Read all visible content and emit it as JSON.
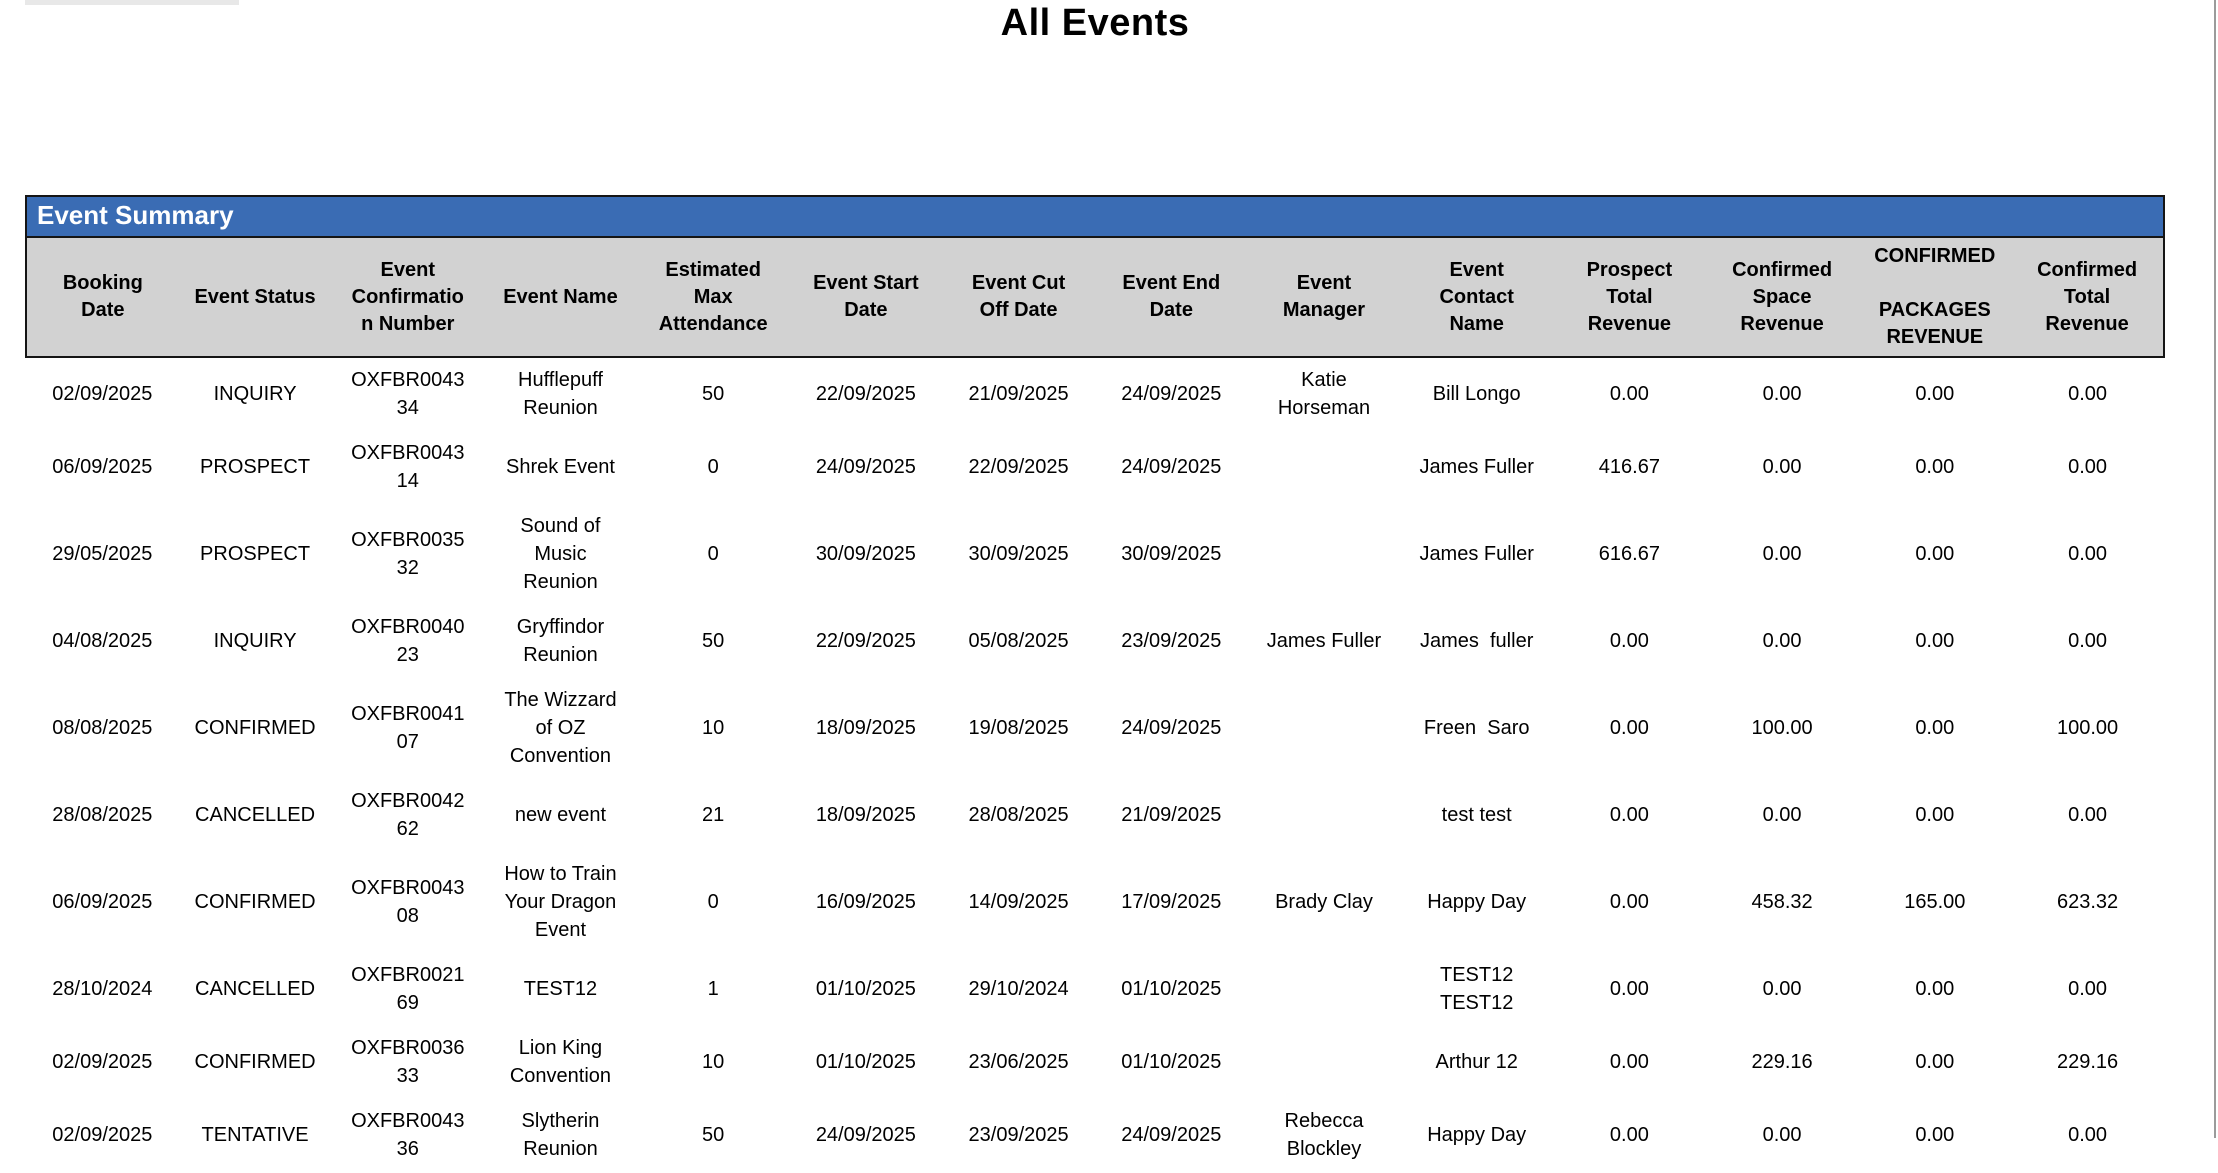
{
  "page": {
    "title": "All Events"
  },
  "colors": {
    "section_bar_blue": "#3a6cb4",
    "header_gray": "#d2d2d2",
    "border_black": "#151515",
    "text_black": "#000000"
  },
  "table": {
    "section_title": "Event Summary",
    "columns": [
      "Booking\nDate",
      "Event Status",
      "Event\nConfirmatio\nn Number",
      "Event Name",
      "Estimated\nMax\nAttendance",
      "Event Start\nDate",
      "Event Cut\nOff Date",
      "Event End\nDate",
      "Event\nManager",
      "Event\nContact\nName",
      "Prospect\nTotal\nRevenue",
      "Confirmed\nSpace\nRevenue",
      "CONFIRMED\n\nPACKAGES\nREVENUE",
      "Confirmed\nTotal\nRevenue"
    ],
    "rows": [
      [
        "02/09/2025",
        "INQUIRY",
        "OXFBR0043\n34",
        "Hufflepuff\nReunion",
        "50",
        "22/09/2025",
        "21/09/2025",
        "24/09/2025",
        "Katie\nHorseman",
        "Bill Longo",
        "0.00",
        "0.00",
        "0.00",
        "0.00"
      ],
      [
        "06/09/2025",
        "PROSPECT",
        "OXFBR0043\n14",
        "Shrek Event",
        "0",
        "24/09/2025",
        "22/09/2025",
        "24/09/2025",
        "",
        "James Fuller",
        "416.67",
        "0.00",
        "0.00",
        "0.00"
      ],
      [
        "29/05/2025",
        "PROSPECT",
        "OXFBR0035\n32",
        "Sound of\nMusic\nReunion",
        "0",
        "30/09/2025",
        "30/09/2025",
        "30/09/2025",
        "",
        "James Fuller",
        "616.67",
        "0.00",
        "0.00",
        "0.00"
      ],
      [
        "04/08/2025",
        "INQUIRY",
        "OXFBR0040\n23",
        "Gryffindor\nReunion",
        "50",
        "22/09/2025",
        "05/08/2025",
        "23/09/2025",
        "James Fuller",
        "James  fuller",
        "0.00",
        "0.00",
        "0.00",
        "0.00"
      ],
      [
        "08/08/2025",
        "CONFIRMED",
        "OXFBR0041\n07",
        "The Wizzard\nof OZ\nConvention",
        "10",
        "18/09/2025",
        "19/08/2025",
        "24/09/2025",
        "",
        "Freen  Saro",
        "0.00",
        "100.00",
        "0.00",
        "100.00"
      ],
      [
        "28/08/2025",
        "CANCELLED",
        "OXFBR0042\n62",
        "new event",
        "21",
        "18/09/2025",
        "28/08/2025",
        "21/09/2025",
        "",
        "test test",
        "0.00",
        "0.00",
        "0.00",
        "0.00"
      ],
      [
        "06/09/2025",
        "CONFIRMED",
        "OXFBR0043\n08",
        "How to Train\nYour Dragon\nEvent",
        "0",
        "16/09/2025",
        "14/09/2025",
        "17/09/2025",
        "Brady Clay",
        "Happy Day",
        "0.00",
        "458.32",
        "165.00",
        "623.32"
      ],
      [
        "28/10/2024",
        "CANCELLED",
        "OXFBR0021\n69",
        "TEST12",
        "1",
        "01/10/2025",
        "29/10/2024",
        "01/10/2025",
        "",
        "TEST12\nTEST12",
        "0.00",
        "0.00",
        "0.00",
        "0.00"
      ],
      [
        "02/09/2025",
        "CONFIRMED",
        "OXFBR0036\n33",
        "Lion King\nConvention",
        "10",
        "01/10/2025",
        "23/06/2025",
        "01/10/2025",
        "",
        "Arthur 12",
        "0.00",
        "229.16",
        "0.00",
        "229.16"
      ],
      [
        "02/09/2025",
        "TENTATIVE",
        "OXFBR0043\n36",
        "Slytherin\nReunion",
        "50",
        "24/09/2025",
        "23/09/2025",
        "24/09/2025",
        "Rebecca\nBlockley",
        "Happy Day",
        "0.00",
        "0.00",
        "0.00",
        "0.00"
      ]
    ]
  }
}
